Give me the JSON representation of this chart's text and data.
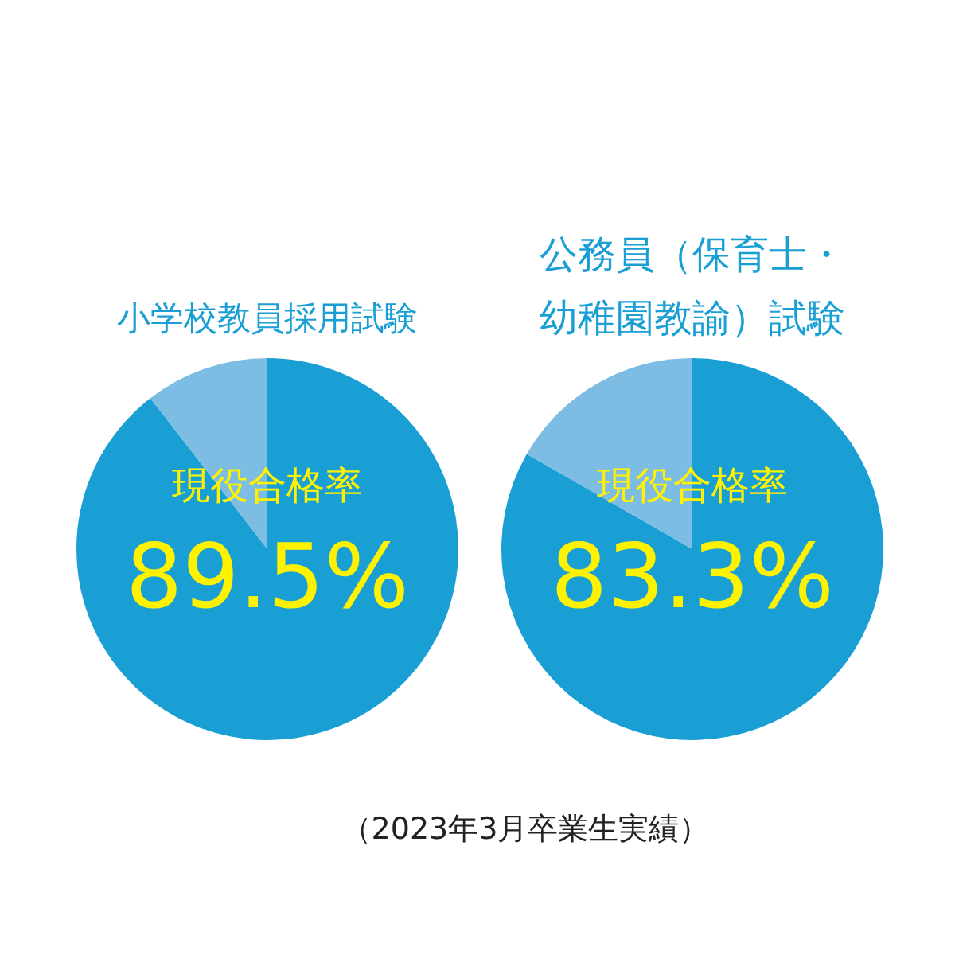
{
  "chart_data": [
    {
      "type": "pie",
      "title": "小学校教員採用試験",
      "categories": [
        null,
        null
      ],
      "values": [
        89.5,
        10.5
      ],
      "colors": [
        "#1a9fd4",
        "#7dbde3"
      ],
      "value_labels": [
        "89.5%",
        null
      ],
      "annotations": [
        "現役合格率"
      ]
    },
    {
      "type": "pie",
      "title": "公務員（保育士・幼稚園教諭）試験",
      "categories": [
        null,
        null
      ],
      "values": [
        83.3,
        16.7
      ],
      "colors": [
        "#1a9fd4",
        "#7dbde3"
      ],
      "value_labels": [
        "83.3%",
        null
      ],
      "annotations": [
        "現役合格率",
        "（2023年3月卒業生実績）"
      ]
    }
  ]
}
